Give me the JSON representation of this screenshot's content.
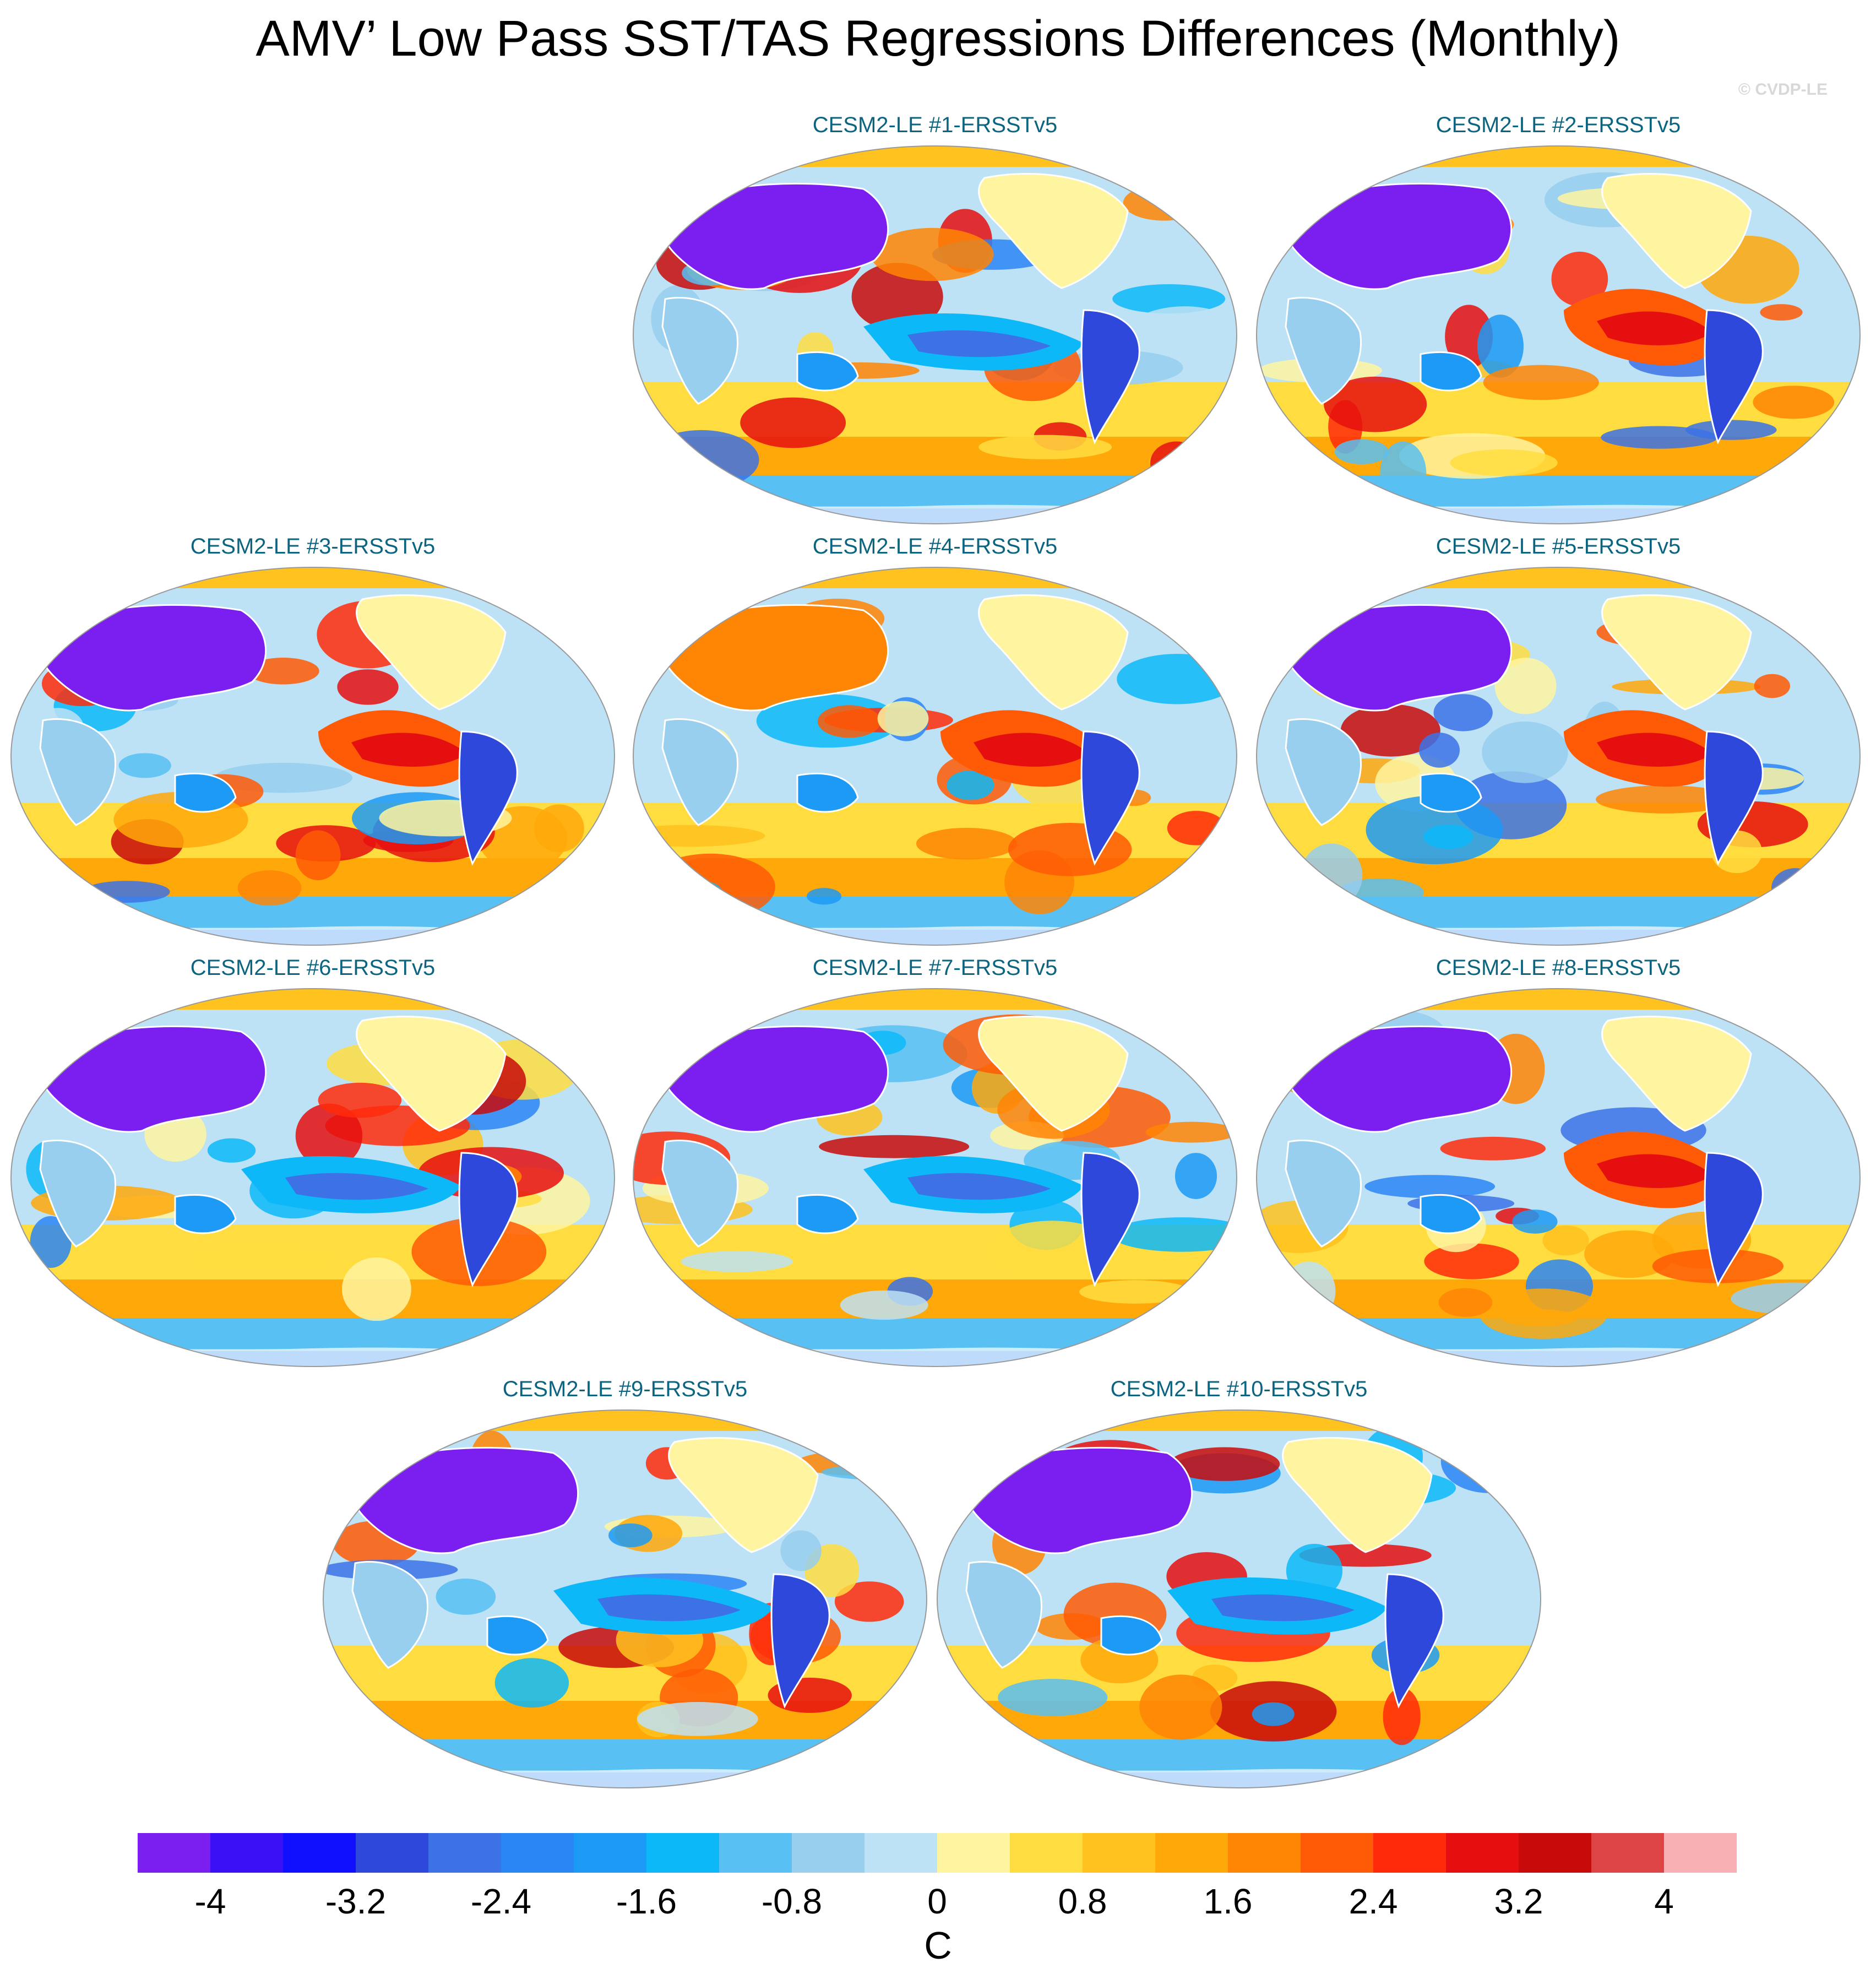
{
  "title": "AMV’ Low Pass SST/TAS Regressions Differences (Monthly)",
  "credit": "© CVDP-LE",
  "panels": [
    {
      "label": "CESM2-LE #1-ERSSTv5",
      "warm_pacific": false,
      "cold_eurasia": true
    },
    {
      "label": "CESM2-LE #2-ERSSTv5",
      "warm_pacific": true,
      "cold_eurasia": true
    },
    {
      "label": "CESM2-LE #3-ERSSTv5",
      "warm_pacific": true,
      "cold_eurasia": true
    },
    {
      "label": "CESM2-LE #4-ERSSTv5",
      "warm_pacific": true,
      "cold_eurasia": false
    },
    {
      "label": "CESM2-LE #5-ERSSTv5",
      "warm_pacific": true,
      "cold_eurasia": true
    },
    {
      "label": "CESM2-LE #6-ERSSTv5",
      "warm_pacific": false,
      "cold_eurasia": true
    },
    {
      "label": "CESM2-LE #7-ERSSTv5",
      "warm_pacific": false,
      "cold_eurasia": true
    },
    {
      "label": "CESM2-LE #8-ERSSTv5",
      "warm_pacific": true,
      "cold_eurasia": true
    },
    {
      "label": "CESM2-LE #9-ERSSTv5",
      "warm_pacific": false,
      "cold_eurasia": true
    },
    {
      "label": "CESM2-LE #10-ERSSTv5",
      "warm_pacific": false,
      "cold_eurasia": true
    }
  ],
  "colorbar": {
    "units": "C",
    "colors": [
      "#7b1ff0",
      "#3b10f5",
      "#1010ff",
      "#2f48dc",
      "#3c72e6",
      "#2b86f5",
      "#1c9af5",
      "#0cb8f8",
      "#58c0f2",
      "#98ceee",
      "#bde2f5",
      "#fff5a0",
      "#ffdd40",
      "#ffc21e",
      "#ffa80a",
      "#ff8505",
      "#ff5a05",
      "#ff2a0a",
      "#e60f0f",
      "#c80a0a",
      "#dc4446",
      "#f8b0b5"
    ],
    "ticks": [
      {
        "value": -4,
        "label": "-4"
      },
      {
        "value": -3.2,
        "label": "-3.2"
      },
      {
        "value": -2.4,
        "label": "-2.4"
      },
      {
        "value": -1.6,
        "label": "-1.6"
      },
      {
        "value": -0.8,
        "label": "-0.8"
      },
      {
        "value": 0,
        "label": "0"
      },
      {
        "value": 0.8,
        "label": "0.8"
      },
      {
        "value": 1.6,
        "label": "1.6"
      },
      {
        "value": 2.4,
        "label": "2.4"
      },
      {
        "value": 3.2,
        "label": "3.2"
      },
      {
        "value": 4,
        "label": "4"
      }
    ]
  }
}
